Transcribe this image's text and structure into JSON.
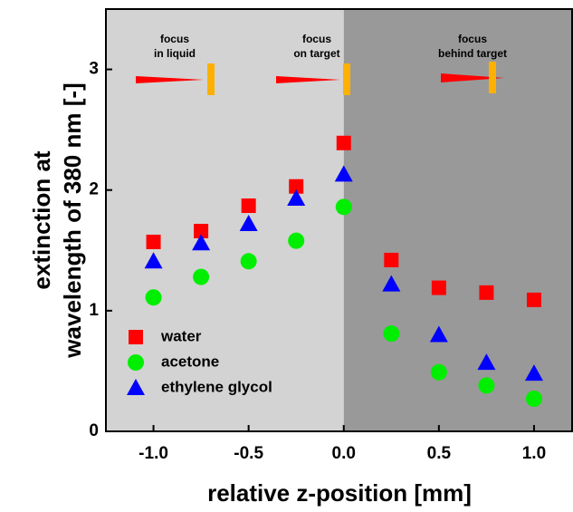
{
  "chart_data": {
    "type": "scatter",
    "xlabel": "relative z-position [mm]",
    "ylabel": [
      "extinction at",
      "wavelength of 380 nm [-]"
    ],
    "x": [
      -1.0,
      -0.75,
      -0.5,
      -0.25,
      0.0,
      0.25,
      0.5,
      0.75,
      1.0
    ],
    "series": [
      {
        "name": "water",
        "color": "#ff0000",
        "marker": "square",
        "values": [
          1.57,
          1.66,
          1.87,
          2.03,
          2.39,
          1.42,
          1.19,
          1.15,
          1.09
        ]
      },
      {
        "name": "acetone",
        "color": "#00ee00",
        "marker": "circle",
        "values": [
          1.11,
          1.28,
          1.41,
          1.58,
          1.86,
          0.81,
          0.49,
          0.38,
          0.27
        ]
      },
      {
        "name": "ethylene glycol",
        "color": "#0000ff",
        "marker": "triangle",
        "values": [
          1.41,
          1.56,
          1.72,
          1.93,
          2.13,
          1.22,
          0.8,
          0.57,
          0.48
        ]
      }
    ],
    "regions": [
      {
        "xlim": [
          -1.25,
          0
        ],
        "color": "#d3d3d3"
      },
      {
        "xlim": [
          0,
          1.2
        ],
        "color": "#999999"
      }
    ],
    "annotations": [
      [
        "focus",
        "in liquid"
      ],
      [
        "focus",
        "on target"
      ],
      [
        "focus",
        "behind target"
      ]
    ],
    "xlim": [
      -1.25,
      1.2
    ],
    "ylim": [
      0,
      3.5
    ],
    "xticks": [
      {
        "value": -1.0,
        "label": "-1.0"
      },
      {
        "value": -0.5,
        "label": "-0.5"
      },
      {
        "value": 0.0,
        "label": "0.0"
      },
      {
        "value": 0.5,
        "label": "0.5"
      },
      {
        "value": 1.0,
        "label": "1.0"
      }
    ],
    "yticks": [
      0,
      1,
      2,
      3
    ],
    "legend": "lower left"
  }
}
